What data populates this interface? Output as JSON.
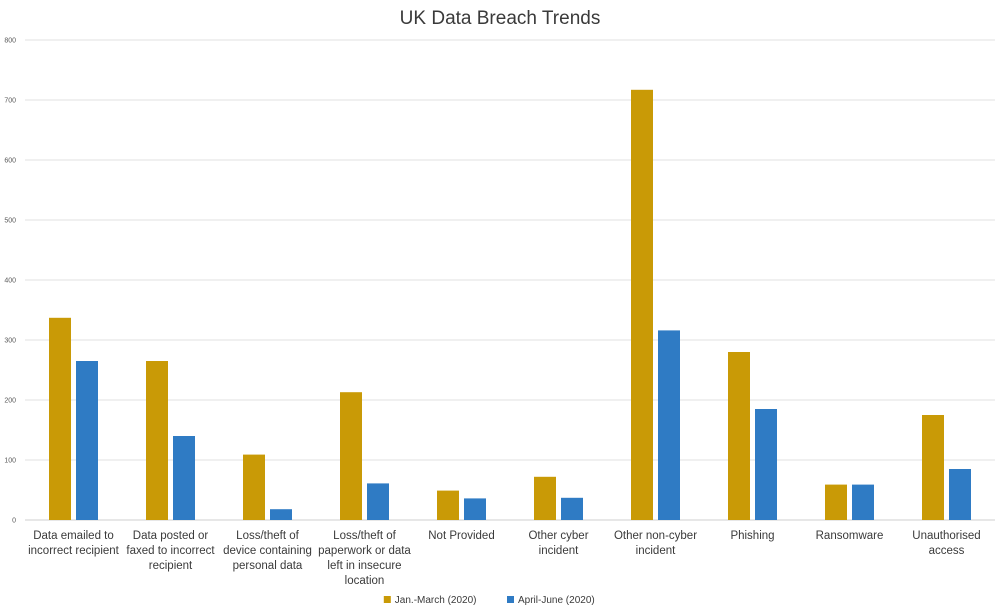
{
  "chart_data": {
    "type": "bar",
    "title": "UK Data Breach Trends",
    "xlabel": "",
    "ylabel": "",
    "ylim": [
      0,
      800
    ],
    "yticks": [
      0,
      100,
      200,
      300,
      400,
      500,
      600,
      700,
      800
    ],
    "grid": true,
    "legend_position": "bottom",
    "categories": [
      [
        "Data emailed to",
        "incorrect recipient"
      ],
      [
        "Data posted or",
        "faxed to incorrect",
        "recipient"
      ],
      [
        "Loss/theft of",
        "device containing",
        "personal data"
      ],
      [
        "Loss/theft of",
        "paperwork or data",
        "left in insecure",
        "location"
      ],
      [
        "Not Provided"
      ],
      [
        "Other cyber",
        "incident"
      ],
      [
        "Other non-cyber",
        "incident"
      ],
      [
        "Phishing"
      ],
      [
        "Ransomware"
      ],
      [
        "Unauthorised",
        "access"
      ]
    ],
    "series": [
      {
        "name": "Jan.-March (2020)",
        "color": "#C99A06",
        "values": [
          337,
          265,
          109,
          213,
          49,
          72,
          717,
          280,
          59,
          175
        ]
      },
      {
        "name": "April-June (2020)",
        "color": "#2F7BC4",
        "values": [
          265,
          140,
          18,
          61,
          36,
          37,
          316,
          185,
          59,
          85
        ]
      }
    ]
  }
}
